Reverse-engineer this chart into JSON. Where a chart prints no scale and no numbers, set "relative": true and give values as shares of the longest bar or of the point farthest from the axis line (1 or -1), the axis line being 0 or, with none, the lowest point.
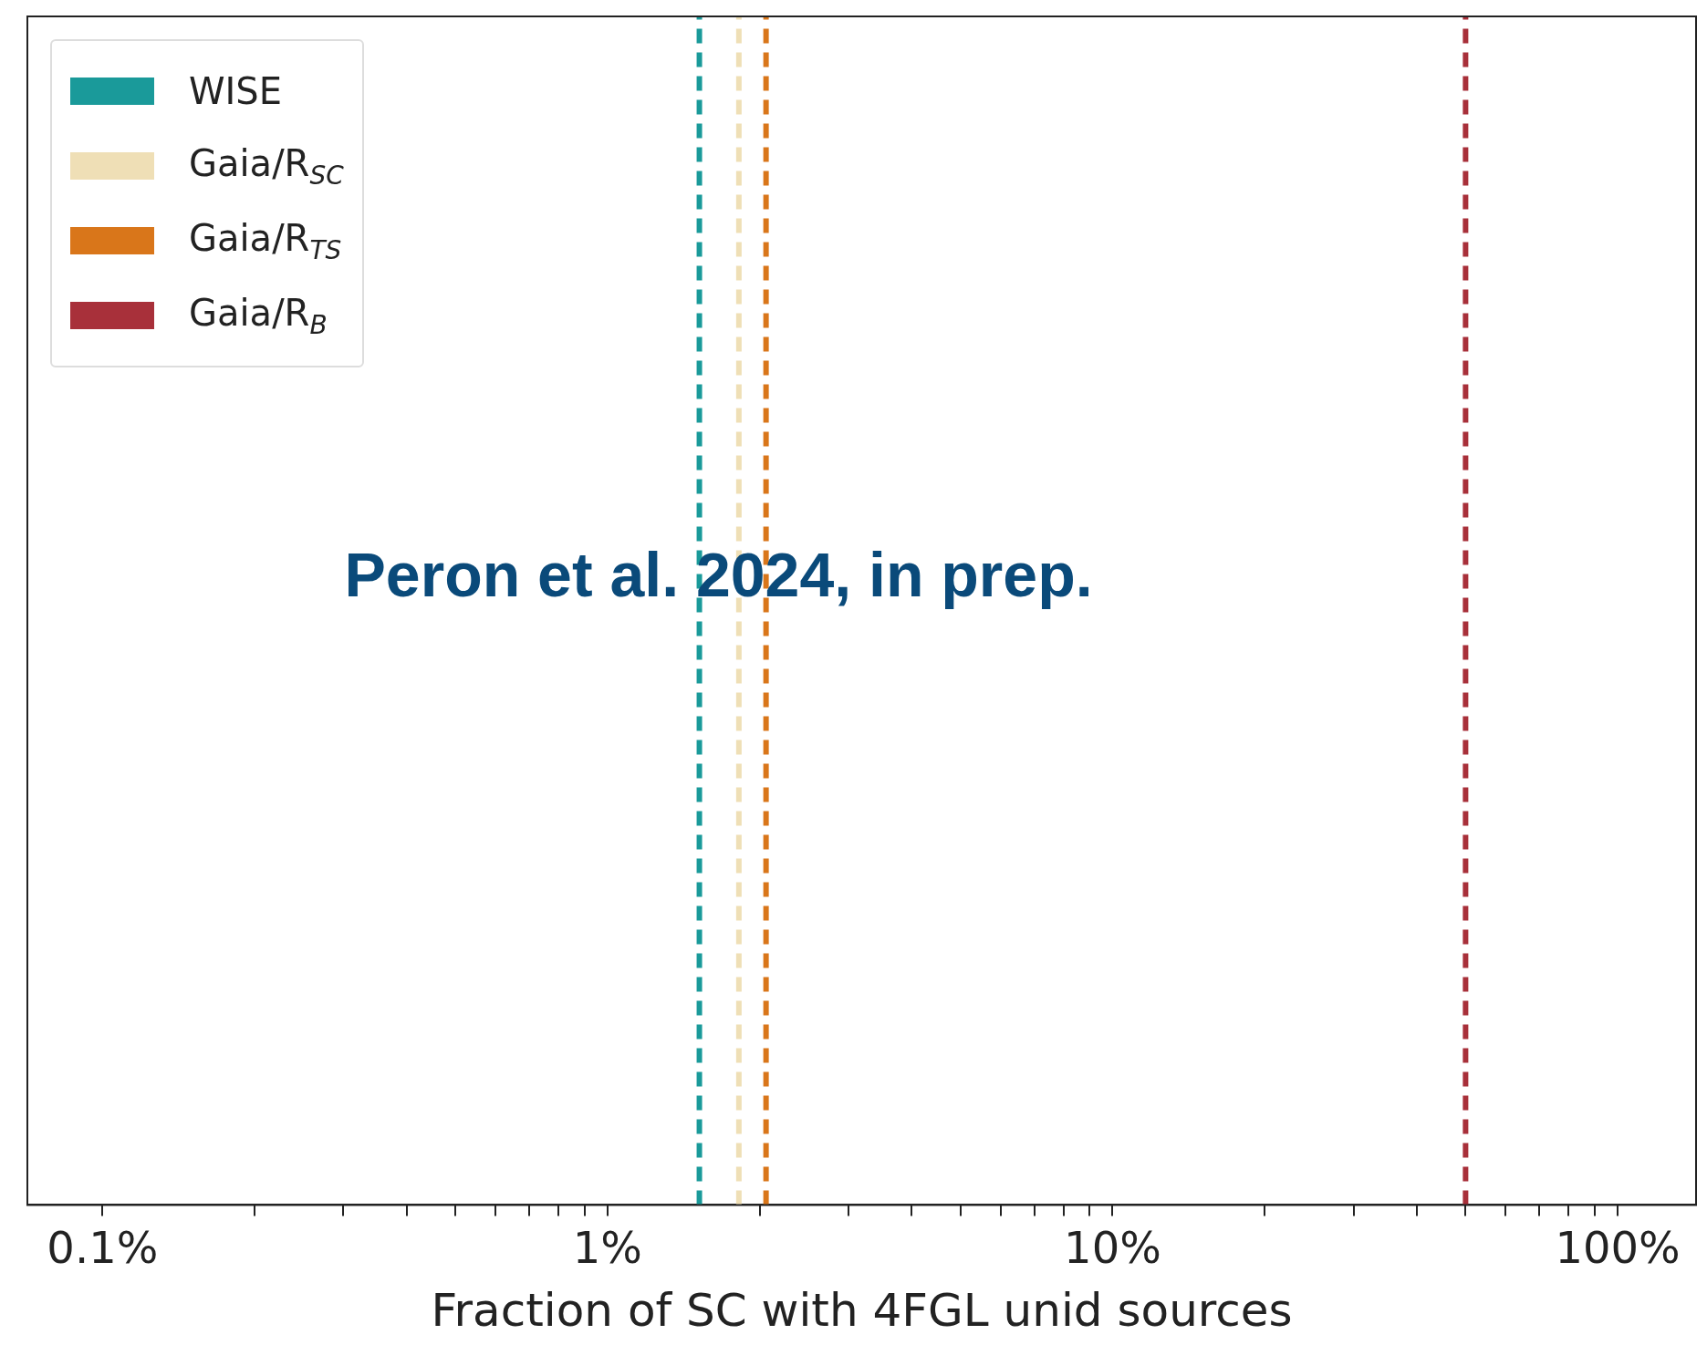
{
  "chart_data": {
    "type": "line",
    "relative": true,
    "xlabel": "Fraction of SC with 4FGL unid sources",
    "log": "x",
    "grid": false,
    "legend": "top left",
    "line_style": "dashed",
    "marker": "none",
    "xlim": [
      0.071,
      143
    ],
    "xticks": [
      {
        "value": 0.1,
        "label": "0.1%"
      },
      {
        "value": 0.2,
        "label": null
      },
      {
        "value": 0.3,
        "label": null
      },
      {
        "value": 0.4,
        "label": null
      },
      {
        "value": 0.5,
        "label": null
      },
      {
        "value": 0.6,
        "label": null
      },
      {
        "value": 0.7,
        "label": null
      },
      {
        "value": 0.8,
        "label": null
      },
      {
        "value": 0.9,
        "label": null
      },
      {
        "value": 1,
        "label": "1%"
      },
      {
        "value": 2,
        "label": null
      },
      {
        "value": 3,
        "label": null
      },
      {
        "value": 4,
        "label": null
      },
      {
        "value": 5,
        "label": null
      },
      {
        "value": 6,
        "label": null
      },
      {
        "value": 7,
        "label": null
      },
      {
        "value": 8,
        "label": null
      },
      {
        "value": 9,
        "label": null
      },
      {
        "value": 10,
        "label": "10%"
      },
      {
        "value": 20,
        "label": null
      },
      {
        "value": 30,
        "label": null
      },
      {
        "value": 40,
        "label": null
      },
      {
        "value": 50,
        "label": null
      },
      {
        "value": 60,
        "label": null
      },
      {
        "value": 70,
        "label": null
      },
      {
        "value": 80,
        "label": null
      },
      {
        "value": 90,
        "label": null
      },
      {
        "value": 100,
        "label": "100%"
      }
    ],
    "series": [
      {
        "name": "WISE",
        "color": "#1a9a9a",
        "x": [
          1.52,
          1.52
        ],
        "values": [
          0,
          1
        ]
      },
      {
        "name": "Gaia/R$_{SC}$",
        "color": "#efdfb6",
        "x": [
          1.82,
          1.82
        ],
        "values": [
          0,
          1
        ]
      },
      {
        "name": "Gaia/R$_{TS}$",
        "color": "#d9761a",
        "x": [
          2.06,
          2.06
        ],
        "values": [
          0,
          1
        ]
      },
      {
        "name": "Gaia/R$_{B}$",
        "color": "#a8303a",
        "x": [
          50,
          50
        ],
        "values": [
          0,
          1
        ]
      }
    ],
    "annotations": [
      "Peron et al. 2024, in prep."
    ]
  }
}
